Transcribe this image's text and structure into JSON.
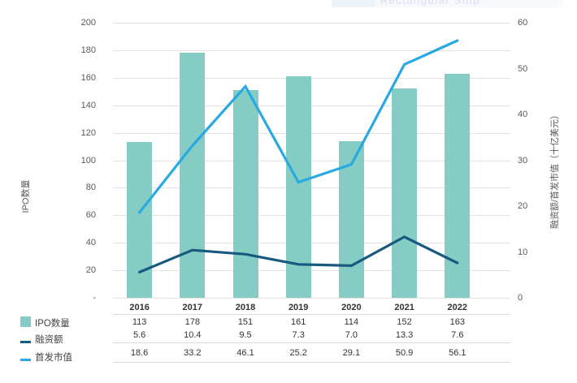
{
  "artifact": {
    "snip_tooltip_text": "Rectangular Snip"
  },
  "chart_data": {
    "type": "combo",
    "subtype": "bar+line, dual axis, with data table and legend at bottom",
    "categories": [
      "2016",
      "2017",
      "2018",
      "2019",
      "2020",
      "2021",
      "2022"
    ],
    "series": [
      {
        "name": "IPO数量",
        "type": "bar",
        "axis": "left",
        "color": "#85CDC4",
        "values": [
          113,
          178,
          151,
          161,
          114,
          152,
          163
        ],
        "labels": [
          "113",
          "178",
          "151",
          "161",
          "114",
          "152",
          "163"
        ]
      },
      {
        "name": "融资额",
        "type": "line",
        "axis": "right",
        "color": "#17597F",
        "values": [
          5.6,
          10.4,
          9.5,
          7.3,
          7.0,
          13.3,
          7.6
        ],
        "labels": [
          "5.6",
          "10.4",
          "9.5",
          "7.3",
          "7.0",
          "13.3",
          "7.6"
        ]
      },
      {
        "name": "首发市值",
        "type": "line",
        "axis": "right",
        "color": "#29A9E1",
        "values": [
          18.6,
          33.2,
          46.1,
          25.2,
          29.1,
          50.9,
          56.1
        ],
        "labels": [
          "18.6",
          "33.2",
          "46.1",
          "25.2",
          "29.1",
          "50.9",
          "56.1"
        ]
      }
    ],
    "left_axis": {
      "title": "IPO数量",
      "max": 200,
      "min": 0,
      "ticks_top_to_bottom": [
        "200",
        "180",
        "160",
        "140",
        "120",
        "100",
        "80",
        "60",
        "40",
        "20",
        "-"
      ]
    },
    "right_axis": {
      "title": "融资额/首发市值（十亿美元）",
      "max": 60,
      "min": 0,
      "ticks_top_to_bottom": [
        "60",
        "50",
        "40",
        "30",
        "20",
        "10",
        "0"
      ]
    },
    "grid": true,
    "legend_position": "bottom-left",
    "colors": {
      "gridline": "#E2E2E2",
      "table_line": "#D9D9D9",
      "tick_text": "#595959",
      "label_text": "#333333"
    }
  }
}
